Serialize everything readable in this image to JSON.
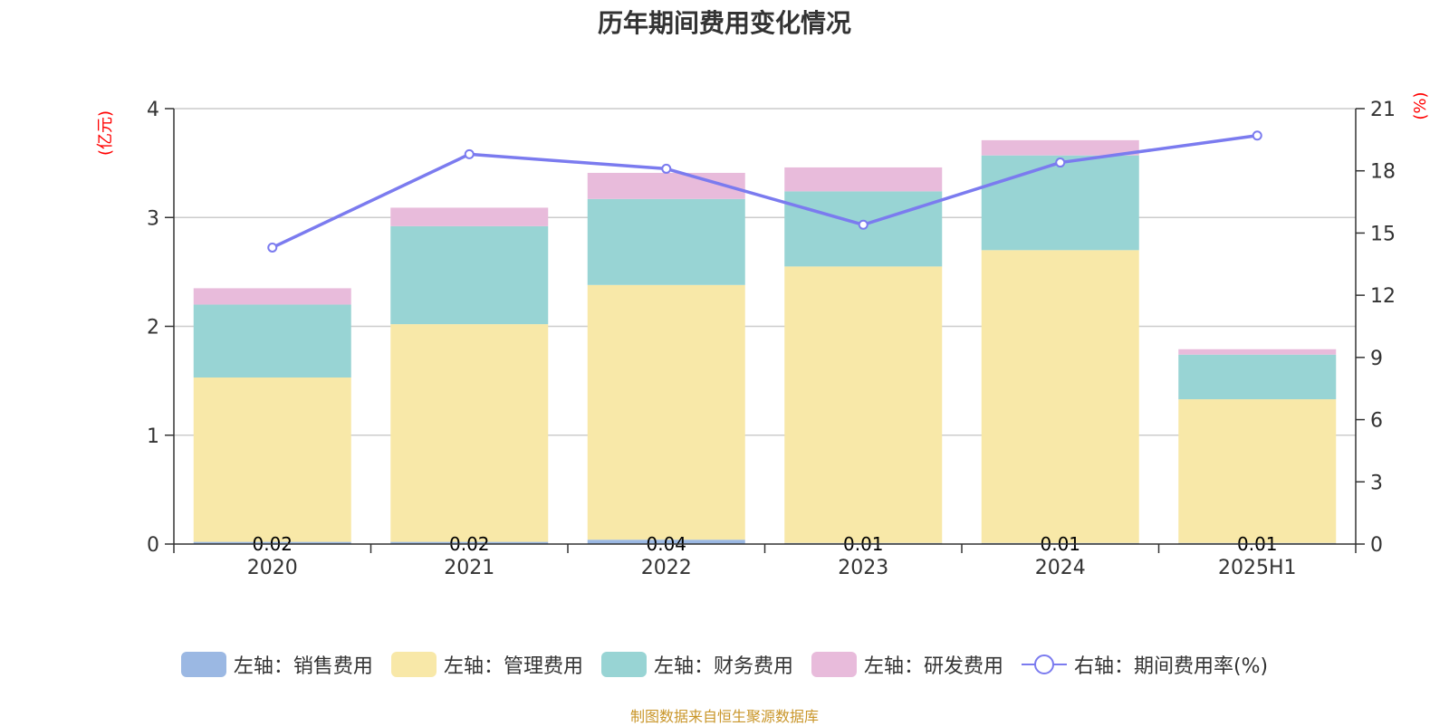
{
  "chart_data": {
    "type": "bar",
    "title": "历年期间费用变化情况",
    "categories": [
      "2020",
      "2021",
      "2022",
      "2023",
      "2024",
      "2025H1"
    ],
    "y_left": {
      "unit": "(亿元)",
      "min": 0,
      "max": 4,
      "ticks": [
        "0",
        "1",
        "2",
        "3",
        "4"
      ]
    },
    "y_right": {
      "unit": "(%)",
      "min": 0,
      "max": 21,
      "ticks": [
        "0",
        "3",
        "6",
        "9",
        "12",
        "15",
        "18",
        "21"
      ]
    },
    "grid": true,
    "legend_position": "bottom",
    "series": [
      {
        "name": "左轴：销售费用",
        "type": "bar",
        "stack": "total",
        "color": "#9bb8e3",
        "values": [
          0.02,
          0.02,
          0.04,
          0.01,
          0.01,
          0.01
        ],
        "labels": [
          "0.02",
          "0.02",
          "0.04",
          "0.01",
          "0.01",
          "0.01"
        ]
      },
      {
        "name": "左轴：管理费用",
        "type": "bar",
        "stack": "total",
        "color": "#f8e8a8",
        "values": [
          1.51,
          2.0,
          2.34,
          2.54,
          2.69,
          1.32
        ]
      },
      {
        "name": "左轴：财务费用",
        "type": "bar",
        "stack": "total",
        "color": "#98d4d4",
        "values": [
          0.67,
          0.9,
          0.79,
          0.69,
          0.87,
          0.41
        ]
      },
      {
        "name": "左轴：研发费用",
        "type": "bar",
        "stack": "total",
        "color": "#e8bbdb",
        "values": [
          0.15,
          0.17,
          0.24,
          0.22,
          0.14,
          0.05
        ]
      },
      {
        "name": "右轴：期间费用率(%)",
        "type": "line",
        "axis": "right",
        "color": "#7b7bef",
        "values": [
          14.3,
          18.8,
          18.1,
          15.4,
          18.4,
          19.7
        ]
      }
    ]
  },
  "source_note": {
    "text": "制图数据来自恒生聚源数据库",
    "color": "#c9962a"
  }
}
